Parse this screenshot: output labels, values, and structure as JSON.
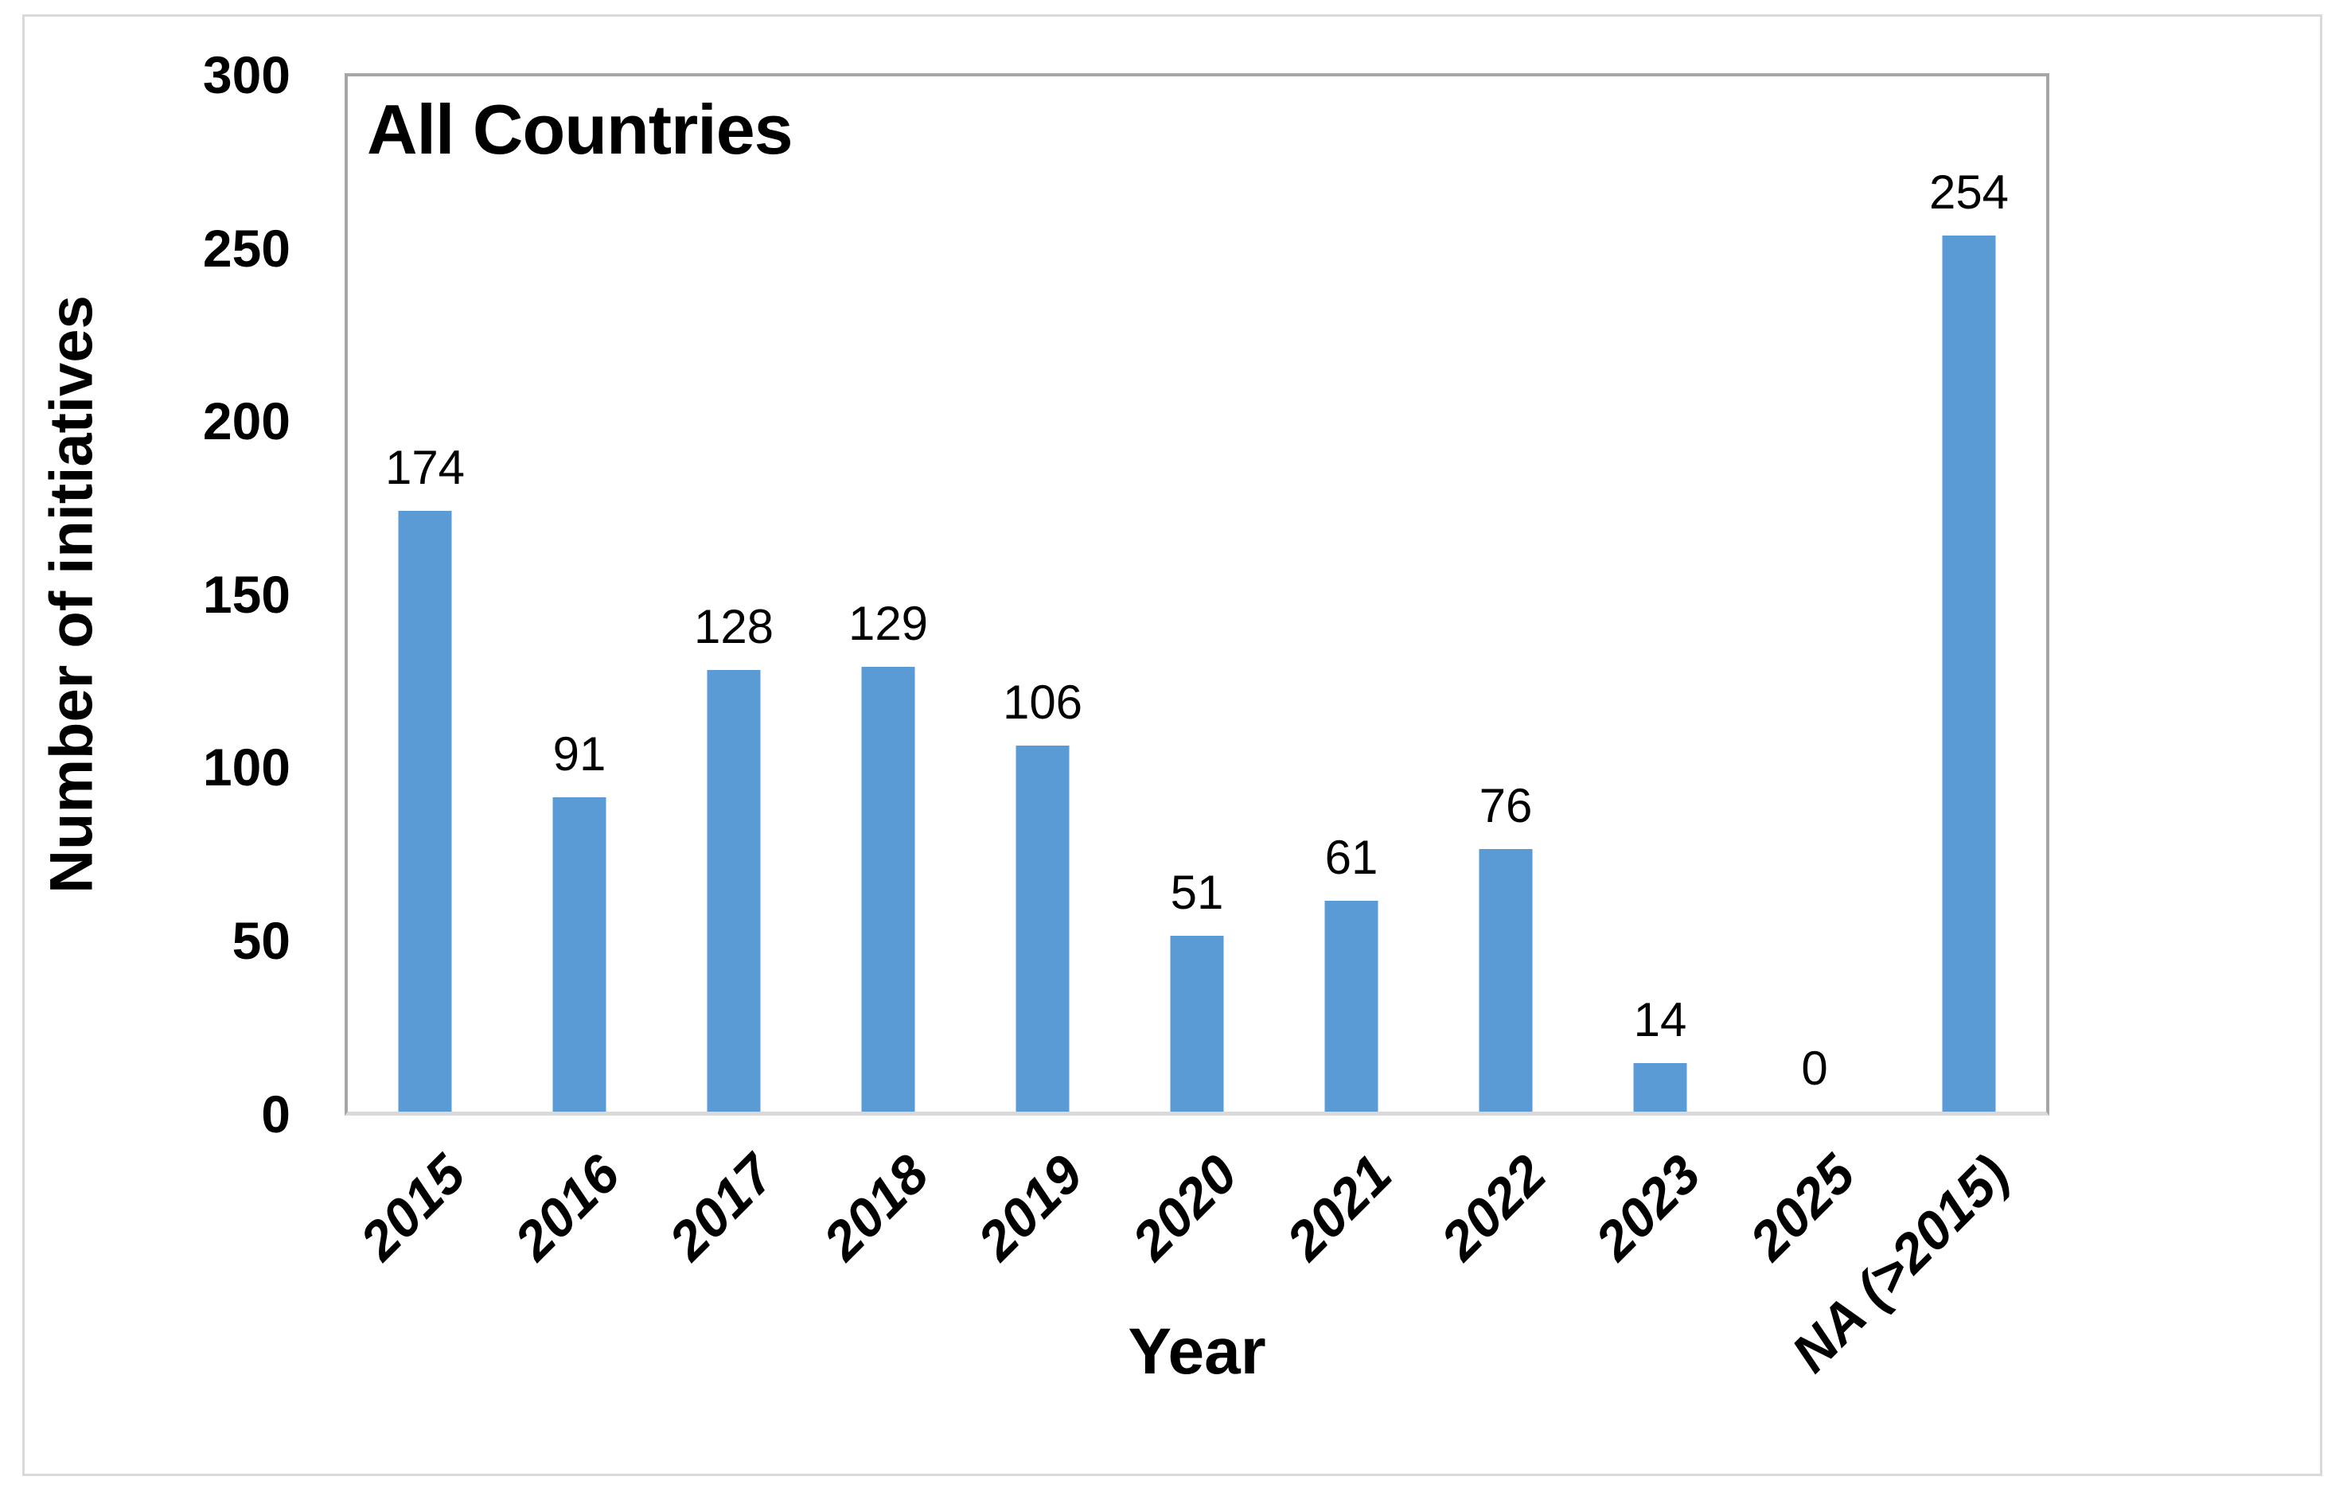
{
  "chart_data": {
    "type": "bar",
    "title": "All Countries",
    "xlabel": "Year",
    "ylabel": "Number of initiatives",
    "categories": [
      "2015",
      "2016",
      "2017",
      "2018",
      "2019",
      "2020",
      "2021",
      "2022",
      "2023",
      "2025",
      "NA (>2015)"
    ],
    "values": [
      174,
      91,
      128,
      129,
      106,
      51,
      61,
      76,
      14,
      0,
      254
    ],
    "ylim": [
      0,
      300
    ],
    "yticks": [
      0,
      50,
      100,
      150,
      200,
      250,
      300
    ],
    "grid": false,
    "legend": "none",
    "data_labels": true,
    "bar_color": "#5b9bd5"
  },
  "colors": {
    "bar": "#5b9bd5",
    "plot_border": "#a6a6a6",
    "axis_line": "#d9d9d9",
    "figure_border": "#d9d9d9",
    "text": "#000000"
  }
}
